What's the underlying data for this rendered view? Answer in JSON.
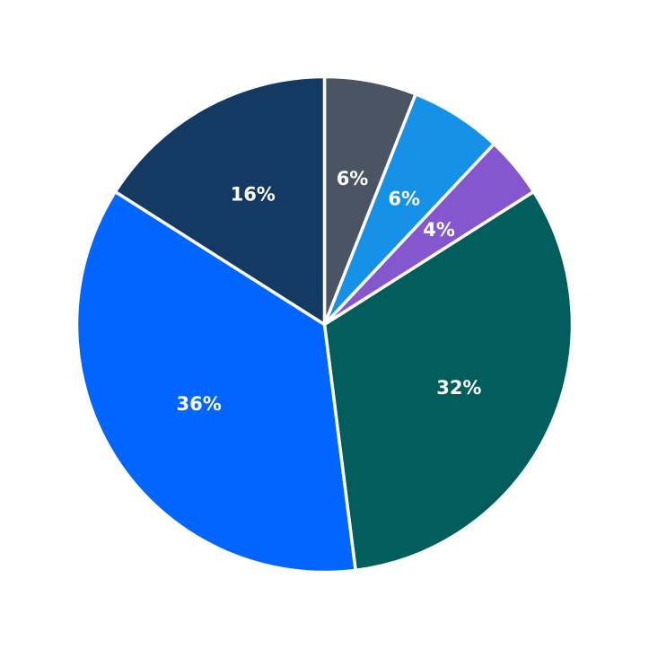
{
  "chart_data": {
    "type": "pie",
    "start_angle_deg": 90,
    "direction": "clockwise",
    "slices": [
      {
        "value": 6,
        "label": "6%",
        "color": "#4a5463"
      },
      {
        "value": 6,
        "label": "6%",
        "color": "#1591e8"
      },
      {
        "value": 4,
        "label": "4%",
        "color": "#8457cf"
      },
      {
        "value": 32,
        "label": "32%",
        "color": "#025e5c"
      },
      {
        "value": 36,
        "label": "36%",
        "color": "#0265ff"
      },
      {
        "value": 16,
        "label": "16%",
        "color": "#143962"
      }
    ]
  }
}
